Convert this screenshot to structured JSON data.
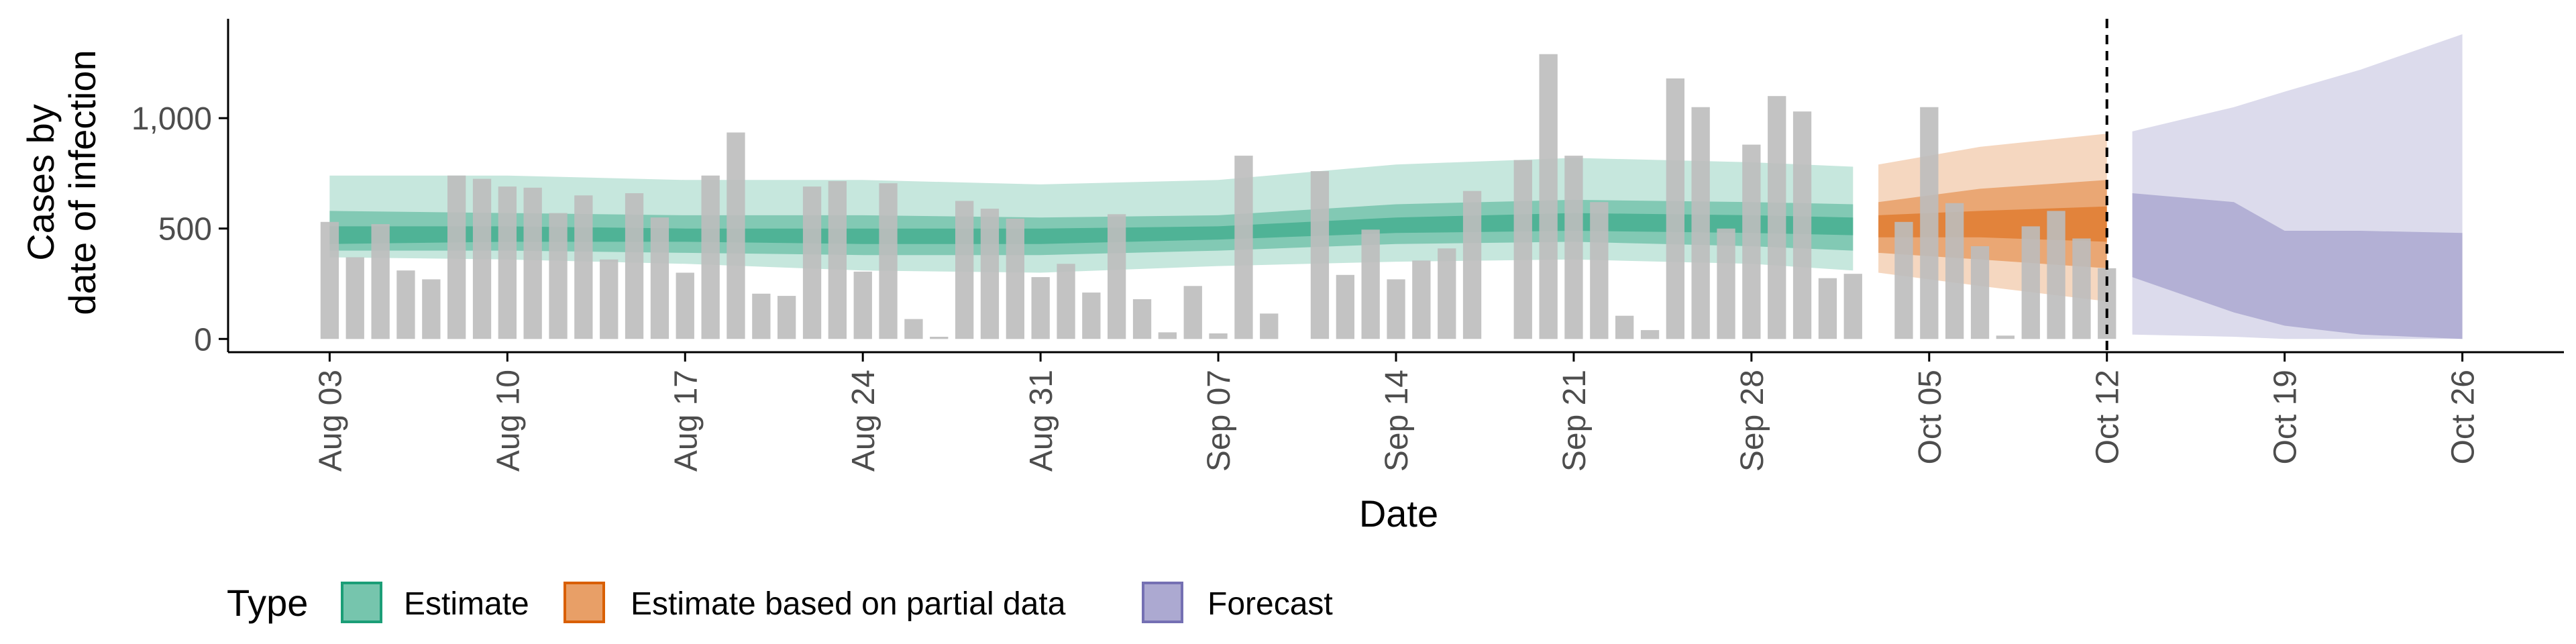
{
  "chart_data": {
    "type": "bar",
    "xlabel": "Date",
    "ylabel_lines": [
      "Cases by",
      "date of infection"
    ],
    "x_ticks": [
      "Aug 03",
      "Aug 10",
      "Aug 17",
      "Aug 24",
      "Aug 31",
      "Sep 07",
      "Sep 14",
      "Sep 21",
      "Sep 28",
      "Oct 05",
      "Oct 12",
      "Oct 19",
      "Oct 26"
    ],
    "y_ticks": [
      "0",
      "500",
      "1,000"
    ],
    "ylim": [
      -60,
      1450
    ],
    "xlim": [
      "2020-07-30",
      "2020-10-30"
    ],
    "forecast_date": "2020-10-12",
    "grid": false,
    "legend": {
      "title": "Type",
      "position": "bottom",
      "items": [
        {
          "label": "Estimate",
          "fill": "#1b9e77",
          "stroke": "#1b9e77"
        },
        {
          "label": "Estimate based on partial data",
          "fill": "#d95f02",
          "stroke": "#d95f02"
        },
        {
          "label": "Forecast",
          "fill": "#7570b3",
          "stroke": "#7570b3"
        }
      ]
    },
    "bars": {
      "color": "#bdbdbd",
      "start_date": "2020-08-03",
      "values": [
        530,
        370,
        520,
        310,
        270,
        740,
        725,
        690,
        685,
        570,
        650,
        360,
        660,
        550,
        300,
        740,
        935,
        205,
        195,
        690,
        715,
        305,
        705,
        90,
        10,
        625,
        590,
        545,
        280,
        340,
        210,
        565,
        180,
        30,
        240,
        25,
        830,
        115,
        0,
        760,
        290,
        495,
        270,
        355,
        410,
        670,
        0,
        810,
        1290,
        830,
        620,
        105,
        40,
        1180,
        1050,
        500,
        880,
        1100,
        1030,
        275,
        295,
        0,
        530,
        1050,
        615,
        420,
        15,
        510,
        580,
        455,
        320
      ]
    },
    "series": [
      {
        "name": "Estimate",
        "color": "#1b9e77",
        "points": [
          {
            "date": "2020-08-03",
            "lo90": 370,
            "hi90": 740,
            "lo50": 400,
            "hi50": 580,
            "lo20": 430,
            "hi20": 510,
            "median": 470
          },
          {
            "date": "2020-08-10",
            "lo90": 360,
            "hi90": 740,
            "lo50": 400,
            "hi50": 570,
            "lo20": 440,
            "hi20": 510,
            "median": 475
          },
          {
            "date": "2020-08-17",
            "lo90": 340,
            "hi90": 720,
            "lo50": 390,
            "hi50": 560,
            "lo20": 440,
            "hi20": 500,
            "median": 470
          },
          {
            "date": "2020-08-24",
            "lo90": 310,
            "hi90": 720,
            "lo50": 380,
            "hi50": 560,
            "lo20": 430,
            "hi20": 500,
            "median": 465
          },
          {
            "date": "2020-08-31",
            "lo90": 300,
            "hi90": 700,
            "lo50": 380,
            "hi50": 550,
            "lo20": 430,
            "hi20": 500,
            "median": 465
          },
          {
            "date": "2020-09-07",
            "lo90": 330,
            "hi90": 720,
            "lo50": 400,
            "hi50": 560,
            "lo20": 450,
            "hi20": 510,
            "median": 480
          },
          {
            "date": "2020-09-14",
            "lo90": 350,
            "hi90": 790,
            "lo50": 430,
            "hi50": 610,
            "lo20": 480,
            "hi20": 550,
            "median": 515
          },
          {
            "date": "2020-09-21",
            "lo90": 360,
            "hi90": 820,
            "lo50": 440,
            "hi50": 630,
            "lo20": 490,
            "hi20": 570,
            "median": 530
          },
          {
            "date": "2020-09-28",
            "lo90": 340,
            "hi90": 800,
            "lo50": 420,
            "hi50": 620,
            "lo20": 480,
            "hi20": 560,
            "median": 520
          },
          {
            "date": "2020-10-02",
            "lo90": 310,
            "hi90": 780,
            "lo50": 400,
            "hi50": 610,
            "lo20": 470,
            "hi20": 550,
            "median": 510
          }
        ]
      },
      {
        "name": "Estimate based on partial data",
        "color": "#d95f02",
        "points": [
          {
            "date": "2020-10-03",
            "lo90": 300,
            "hi90": 790,
            "lo50": 390,
            "hi50": 620,
            "lo20": 460,
            "hi20": 560,
            "median": 510
          },
          {
            "date": "2020-10-07",
            "lo90": 240,
            "hi90": 870,
            "lo50": 360,
            "hi50": 680,
            "lo20": 460,
            "hi20": 580,
            "median": 520
          },
          {
            "date": "2020-10-12",
            "lo90": 170,
            "hi90": 930,
            "lo50": 320,
            "hi50": 720,
            "lo20": 440,
            "hi20": 600,
            "median": 520
          }
        ]
      },
      {
        "name": "Forecast",
        "color": "#7570b3",
        "points": [
          {
            "date": "2020-10-13",
            "lo90": 20,
            "hi90": 940,
            "lo50": 280,
            "hi50": 660
          },
          {
            "date": "2020-10-17",
            "lo90": 10,
            "hi90": 1050,
            "lo50": 120,
            "hi50": 620
          },
          {
            "date": "2020-10-19",
            "lo90": 0,
            "hi90": 1120,
            "lo50": 60,
            "hi50": 490
          },
          {
            "date": "2020-10-22",
            "lo90": 0,
            "hi90": 1220,
            "lo50": 20,
            "hi50": 490
          },
          {
            "date": "2020-10-26",
            "lo90": 0,
            "hi90": 1380,
            "lo50": 0,
            "hi50": 480
          }
        ]
      }
    ]
  }
}
